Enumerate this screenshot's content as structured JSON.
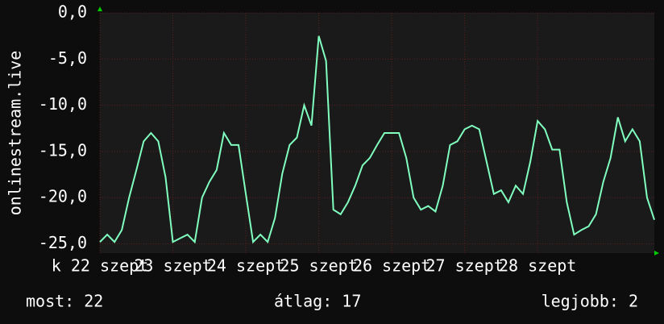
{
  "chart_data": {
    "type": "line",
    "y_label": "onlinestream.live",
    "x": [
      0,
      0.1,
      0.2,
      0.3,
      0.4,
      0.5,
      0.6,
      0.7,
      0.8,
      0.9,
      1,
      1.1,
      1.2,
      1.3,
      1.4,
      1.5,
      1.6,
      1.7,
      1.8,
      1.9,
      2,
      2.1,
      2.2,
      2.3,
      2.4,
      2.5,
      2.6,
      2.7,
      2.8,
      2.9,
      3,
      3.1,
      3.2,
      3.3,
      3.4,
      3.5,
      3.6,
      3.7,
      3.8,
      3.9,
      4,
      4.1,
      4.2,
      4.3,
      4.4,
      4.5,
      4.6,
      4.7,
      4.8,
      4.9,
      5,
      5.1,
      5.2,
      5.3,
      5.4,
      5.5,
      5.6,
      5.7,
      5.8,
      5.9,
      6,
      6.1,
      6.2,
      6.3,
      6.4,
      6.5,
      6.6,
      6.7,
      6.8,
      6.9,
      7,
      7.1,
      7.2,
      7.3,
      7.4,
      7.5,
      7.6
    ],
    "series": [
      {
        "color": "#80ffbf",
        "values": [
          -24.8,
          -24.0,
          -24.8,
          -23.5,
          -20.0,
          -17.0,
          -13.9,
          -13.0,
          -13.9,
          -17.8,
          -24.8,
          -24.4,
          -24.0,
          -24.8,
          -20.0,
          -18.3,
          -17.0,
          -13.0,
          -14.3,
          -14.3,
          -19.6,
          -24.8,
          -24.0,
          -24.8,
          -22.2,
          -17.4,
          -14.3,
          -13.5,
          -10.0,
          -12.2,
          -2.5,
          -5.2,
          -21.3,
          -21.8,
          -20.5,
          -18.7,
          -16.5,
          -15.7,
          -14.3,
          -13.0,
          -13.0,
          -13.0,
          -15.7,
          -20.0,
          -21.3,
          -20.9,
          -21.5,
          -18.7,
          -14.3,
          -13.9,
          -12.6,
          -12.2,
          -12.6,
          -16.1,
          -19.6,
          -19.2,
          -20.5,
          -18.7,
          -19.6,
          -16.1,
          -11.7,
          -12.6,
          -14.8,
          -14.8,
          -20.5,
          -24.0,
          -23.5,
          -23.1,
          -21.8,
          -18.3,
          -15.7,
          -11.3,
          -13.9,
          -12.6,
          -13.9,
          -20.0,
          -22.4
        ]
      }
    ],
    "xlim": [
      0,
      7.6
    ],
    "xticks": [
      {
        "value": 0,
        "label": "k 22 szept"
      },
      {
        "value": 1,
        "label": "23 szept"
      },
      {
        "value": 2,
        "label": "24 szept"
      },
      {
        "value": 3,
        "label": "25 szept"
      },
      {
        "value": 4,
        "label": "26 szept"
      },
      {
        "value": 5,
        "label": "27 szept"
      },
      {
        "value": 6,
        "label": "28 szept"
      }
    ],
    "ylim": [
      -26,
      0
    ],
    "yticks": [
      {
        "value": 0,
        "label": "0,0"
      },
      {
        "value": -5,
        "label": "-5,0"
      },
      {
        "value": -10,
        "label": "-10,0"
      },
      {
        "value": -15,
        "label": "-15,0"
      },
      {
        "value": -20,
        "label": "-20,0"
      },
      {
        "value": -25,
        "label": "-25,0"
      }
    ],
    "grid": true
  },
  "footer": {
    "current": "most: 22",
    "average": "átlag: 17",
    "best": "legjobb: 2"
  }
}
